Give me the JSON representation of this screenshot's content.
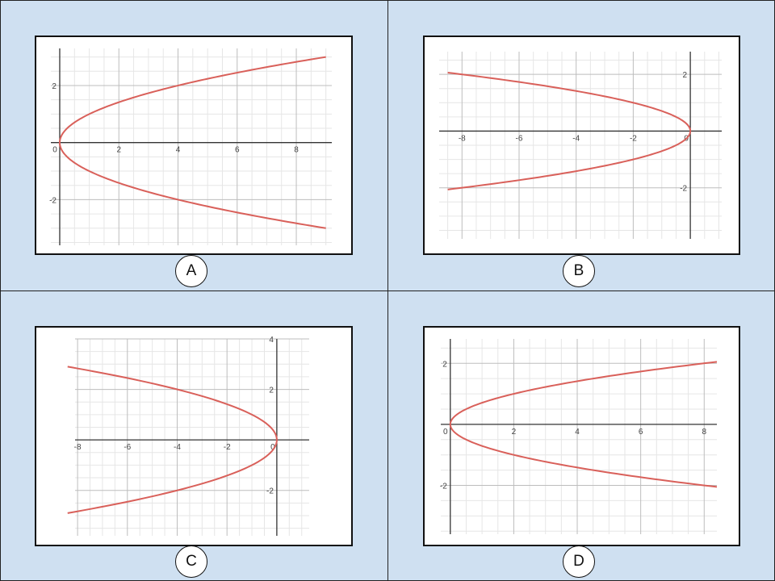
{
  "chart_data": [
    {
      "panel": "A",
      "type": "line",
      "relation": "x = y^2",
      "series": [
        {
          "x": [
            9,
            4,
            1,
            0,
            1,
            4,
            9
          ],
          "y": [
            3,
            2,
            1,
            0,
            -1,
            -2,
            -3
          ]
        }
      ],
      "xticks": [
        "0",
        "2",
        "4",
        "6",
        "8"
      ],
      "yticks": [
        "2",
        "-2"
      ],
      "xlim": [
        -0.3,
        9.2
      ],
      "ylim": [
        -3.6,
        3.3
      ],
      "grid": true
    },
    {
      "panel": "B",
      "type": "line",
      "relation": "x = -2 y^2",
      "series": [
        {
          "x": [
            -8.5,
            -4.5,
            -2,
            -0.5,
            0,
            -0.5,
            -2,
            -4.5,
            -8.5
          ],
          "y": [
            2.06,
            1.5,
            1,
            0.5,
            0,
            -0.5,
            -1,
            -1.5,
            -2.06
          ]
        }
      ],
      "xticks": [
        "-8",
        "-6",
        "-4",
        "-2",
        "0"
      ],
      "yticks": [
        "2",
        "-2"
      ],
      "xlim": [
        -8.8,
        1.1
      ],
      "ylim": [
        -3.8,
        2.8
      ],
      "grid": true
    },
    {
      "panel": "C",
      "type": "line",
      "relation": "x = -y^2",
      "series": [
        {
          "x": [
            -8.4,
            -4,
            -1,
            0,
            -1,
            -4,
            -8.4
          ],
          "y": [
            2.9,
            2,
            1,
            0,
            -1,
            -2,
            -2.9
          ]
        }
      ],
      "xticks": [
        "-8",
        "-6",
        "-4",
        "-2",
        "0"
      ],
      "yticks": [
        "4",
        "2",
        "-2"
      ],
      "xlim": [
        -8.1,
        1.3
      ],
      "ylim": [
        -3.8,
        4
      ],
      "grid": true
    },
    {
      "panel": "D",
      "type": "line",
      "relation": "x = 2 y^2",
      "series": [
        {
          "x": [
            8.4,
            4.5,
            2,
            0.5,
            0,
            0.5,
            2,
            4.5,
            8.4
          ],
          "y": [
            2.05,
            1.5,
            1,
            0.5,
            0,
            -0.5,
            -1,
            -1.5,
            -2.05
          ]
        }
      ],
      "xticks": [
        "0",
        "2",
        "4",
        "6",
        "8"
      ],
      "yticks": [
        "2",
        "-2"
      ],
      "xlim": [
        -0.3,
        8.4
      ],
      "ylim": [
        -3.6,
        2.8
      ],
      "grid": true
    }
  ],
  "colors": {
    "background": "#cfe0f1",
    "curve": "#d9605a",
    "axis": "#333333",
    "grid_major": "#bdbdbd",
    "grid_minor": "#e6e6e6",
    "tick_text": "#444444"
  },
  "labels": [
    "A",
    "B",
    "C",
    "D"
  ]
}
